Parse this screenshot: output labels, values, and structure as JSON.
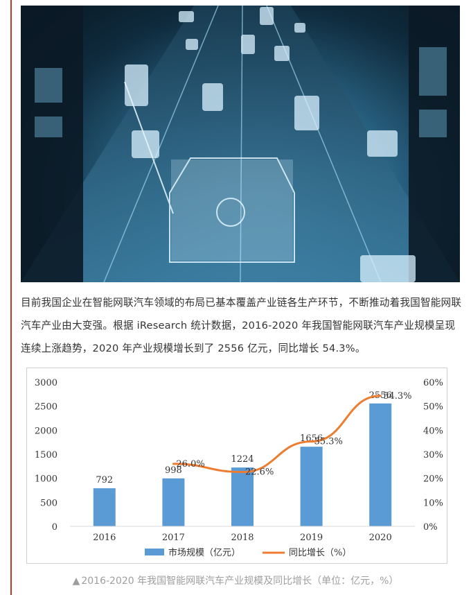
{
  "article": {
    "paragraph": "目前我国企业在智能网联汽车领域的布局已基本覆盖产业链各生产环节，不断推动着我国智能网联汽车产业由大变强。根据 iResearch 统计数据，2016-2020 年我国智能网联汽车产业规模呈现连续上涨趋势，2020 年产业规模增长到了 2556 亿元，同比增长 54.3%。",
    "caption_marker": "▲",
    "caption": "2016-2020 年我国智能网联汽车产业规模及同比增长（单位：亿元，%）"
  },
  "colors": {
    "accent_rule": "#c0392b",
    "bar": "#5b9bd5",
    "line": "#ed7d31"
  },
  "chart_data": {
    "type": "bar",
    "categories": [
      "2016",
      "2017",
      "2018",
      "2019",
      "2020"
    ],
    "series": [
      {
        "name": "市场规模（亿元）",
        "type": "bar",
        "axis": "left",
        "values": [
          792,
          998,
          1224,
          1656,
          2556
        ],
        "labels": [
          "792",
          "998",
          "1224",
          "1656",
          "2556"
        ]
      },
      {
        "name": "同比增长（%）",
        "type": "line",
        "axis": "right",
        "values": [
          null,
          26.0,
          22.6,
          35.3,
          54.3
        ],
        "labels": [
          "",
          "26.0%",
          "22.6%",
          "35.3%",
          "54.3%"
        ]
      }
    ],
    "y_left": {
      "range": [
        0,
        3000
      ],
      "ticks": [
        "0",
        "500",
        "1000",
        "1500",
        "2000",
        "2500",
        "3000"
      ]
    },
    "y_right": {
      "range": [
        0,
        60
      ],
      "ticks": [
        "0%",
        "10%",
        "20%",
        "30%",
        "40%",
        "50%",
        "60%"
      ]
    },
    "grid": false,
    "legend_position": "bottom"
  }
}
